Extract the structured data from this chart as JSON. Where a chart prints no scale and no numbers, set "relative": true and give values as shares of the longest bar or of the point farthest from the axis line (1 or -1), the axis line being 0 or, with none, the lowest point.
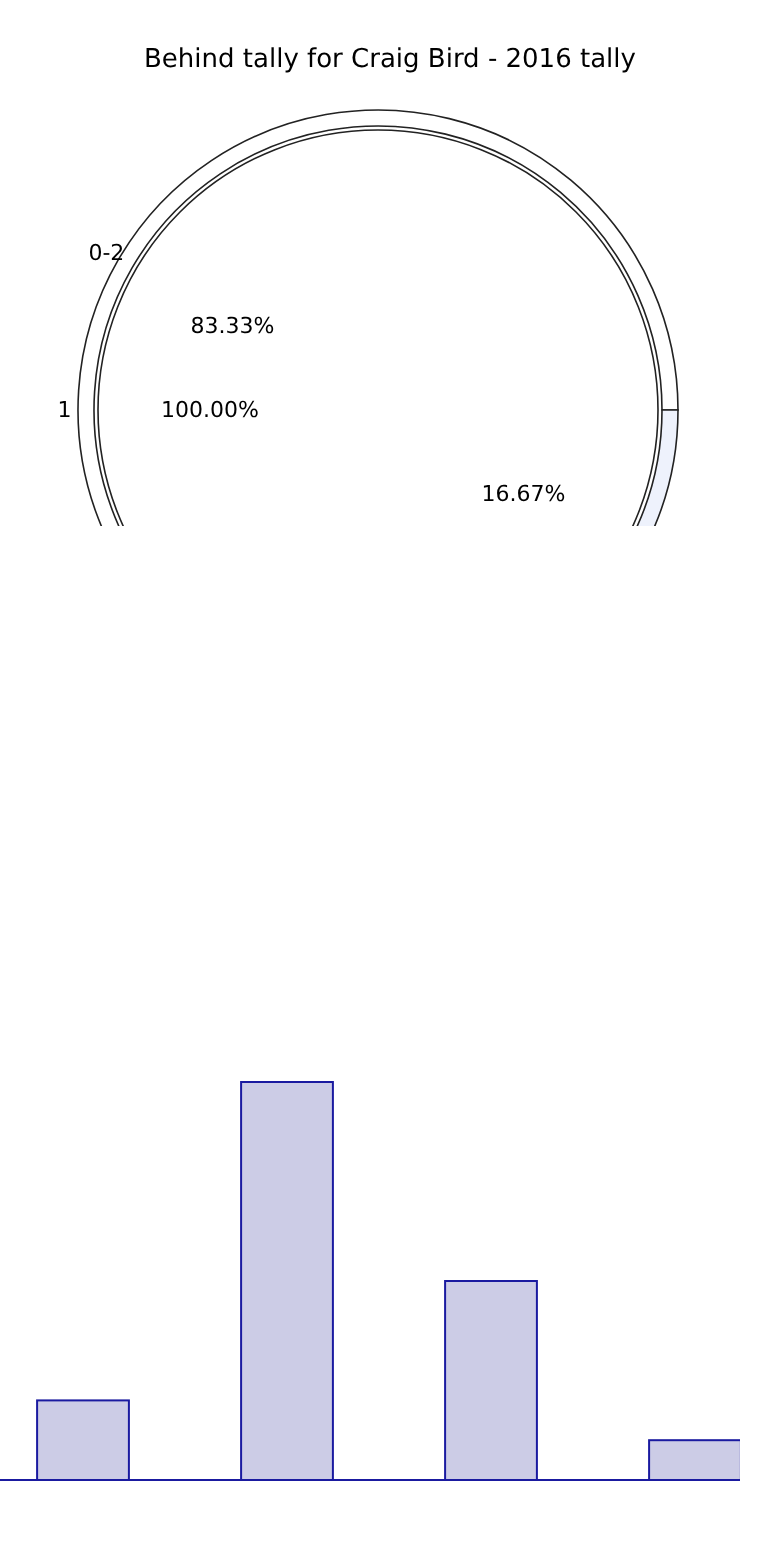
{
  "chart_data": [
    {
      "type": "pie",
      "title": "Behind tally for Craig Bird - 2016 tally",
      "categories": [
        "1"
      ],
      "values": [
        100
      ],
      "colors": [
        "#ffffff"
      ],
      "value_labels": [
        "100.00%"
      ]
    },
    {
      "type": "donut",
      "categories": [
        "0-2",
        null
      ],
      "values": [
        83.33,
        16.67
      ],
      "colors": [
        "#ffffff",
        "#eef2fc"
      ],
      "value_labels": [
        "83.33%",
        "16.67%"
      ]
    },
    {
      "type": "bar",
      "relative": true,
      "categories": [
        null,
        null,
        null,
        null
      ],
      "values": [
        0.2,
        1,
        0.5,
        0.1
      ],
      "color": "#cccce6"
    }
  ]
}
